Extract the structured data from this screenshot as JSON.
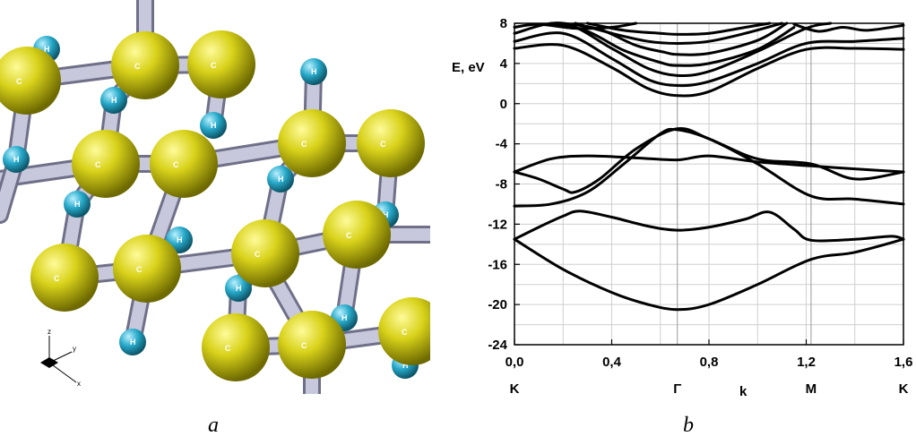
{
  "figure": {
    "panel_a": {
      "caption": "a",
      "carbon_label": "C",
      "hydrogen_label": "H",
      "axes_triad": {
        "z": "z",
        "y": "y",
        "x": "x"
      },
      "colors": {
        "carbon": "#c9c40e",
        "hydrogen": "#27a9c9",
        "bond": "#c7c8dc"
      }
    },
    "panel_b": {
      "caption": "b"
    }
  },
  "chart_data": {
    "type": "line",
    "ylabel": "E, eV",
    "xlabel": "k",
    "xlim": [
      0,
      1.6
    ],
    "ylim": [
      -24,
      8
    ],
    "x_ticks": [
      "0,0",
      "0,4",
      "0,8",
      "1,2",
      "1,6"
    ],
    "y_ticks": [
      "8",
      "4",
      "0",
      "-4",
      "-8",
      "-12",
      "-16",
      "-20",
      "-24"
    ],
    "high_symmetry_points": [
      {
        "label": "K",
        "x": 0.0
      },
      {
        "label": "Γ",
        "x": 0.67
      },
      {
        "label": "M",
        "x": 1.22
      },
      {
        "label": "K",
        "x": 1.6
      }
    ],
    "grid": true,
    "series": [
      {
        "x": [
          0,
          0.2,
          0.4,
          0.55,
          0.67,
          0.8,
          1.0,
          1.22,
          1.4,
          1.6
        ],
        "y": [
          -13.5,
          -16.5,
          -18.8,
          -20.0,
          -20.5,
          -20.0,
          -18.0,
          -15.5,
          -14.8,
          -13.5
        ]
      },
      {
        "x": [
          0,
          0.1,
          0.2,
          0.27,
          0.4,
          0.55,
          0.67,
          0.8,
          0.95,
          1.05,
          1.15,
          1.22,
          1.4,
          1.55,
          1.6
        ],
        "y": [
          -13.5,
          -12.3,
          -11.2,
          -10.7,
          -11.3,
          -12.2,
          -12.6,
          -12.3,
          -11.5,
          -10.8,
          -12.5,
          -13.6,
          -13.5,
          -13.2,
          -13.5
        ]
      },
      {
        "x": [
          0,
          0.15,
          0.3,
          0.45,
          0.6,
          0.67,
          0.8,
          1.0,
          1.22,
          1.4,
          1.6
        ],
        "y": [
          -10.2,
          -10.0,
          -8.8,
          -6.0,
          -3.0,
          -2.6,
          -3.5,
          -6.0,
          -9.2,
          -9.5,
          -10.0
        ]
      },
      {
        "x": [
          0,
          0.1,
          0.2,
          0.25,
          0.35,
          0.5,
          0.67,
          0.8,
          1.0,
          1.22,
          1.4,
          1.6
        ],
        "y": [
          -6.8,
          -7.5,
          -8.5,
          -8.8,
          -7.5,
          -4.5,
          -2.5,
          -3.5,
          -5.5,
          -6.0,
          -7.5,
          -6.8
        ]
      },
      {
        "x": [
          0,
          0.15,
          0.3,
          0.5,
          0.67,
          0.8,
          1.0,
          1.22,
          1.4,
          1.6
        ],
        "y": [
          -6.8,
          -5.5,
          -5.2,
          -5.4,
          -5.6,
          -5.2,
          -5.8,
          -6.2,
          -6.5,
          -6.8
        ]
      },
      {
        "x": [
          0,
          0.2,
          0.4,
          0.55,
          0.67,
          0.8,
          1.0,
          1.2,
          1.4,
          1.6
        ],
        "y": [
          5.5,
          5.8,
          3.6,
          1.5,
          0.8,
          1.2,
          3.5,
          5.4,
          5.5,
          5.4
        ]
      },
      {
        "x": [
          0,
          0.2,
          0.4,
          0.55,
          0.67,
          0.8,
          1.0,
          1.2,
          1.4,
          1.6
        ],
        "y": [
          6.2,
          7.0,
          4.5,
          2.4,
          1.8,
          2.2,
          4.0,
          6.0,
          6.2,
          6.5
        ]
      },
      {
        "x": [
          0,
          0.2,
          0.4,
          0.55,
          0.67,
          0.8,
          1.0,
          1.2,
          1.3
        ],
        "y": [
          7.0,
          8.0,
          5.5,
          3.5,
          2.8,
          3.2,
          5.2,
          7.5,
          8.0
        ]
      },
      {
        "x": [
          0.15,
          0.3,
          0.45,
          0.6,
          0.67,
          0.8,
          1.0,
          1.15
        ],
        "y": [
          8.0,
          7.2,
          5.3,
          4.1,
          3.8,
          4.0,
          5.4,
          7.6
        ]
      },
      {
        "x": [
          0.2,
          0.35,
          0.5,
          0.62,
          0.67,
          0.8,
          1.0,
          1.12
        ],
        "y": [
          8.0,
          7.4,
          5.8,
          5.1,
          4.9,
          5.0,
          6.3,
          8.0
        ]
      },
      {
        "x": [
          0.25,
          0.4,
          0.55,
          0.67,
          0.8,
          0.95,
          1.1
        ],
        "y": [
          8.0,
          7.0,
          6.2,
          6.0,
          6.2,
          7.0,
          8.0
        ]
      },
      {
        "x": [
          0.3,
          0.45,
          0.6,
          0.67,
          0.8,
          0.95,
          1.05
        ],
        "y": [
          8.0,
          7.3,
          7.0,
          6.9,
          7.0,
          7.6,
          8.0
        ]
      },
      {
        "x": [
          0,
          0.1,
          0.25,
          0.4,
          0.5
        ],
        "y": [
          7.6,
          7.9,
          7.5,
          7.6,
          8.0
        ]
      },
      {
        "x": [
          1.15,
          1.25,
          1.35,
          1.45,
          1.6
        ],
        "y": [
          7.9,
          7.2,
          7.6,
          7.3,
          7.8
        ]
      }
    ]
  }
}
